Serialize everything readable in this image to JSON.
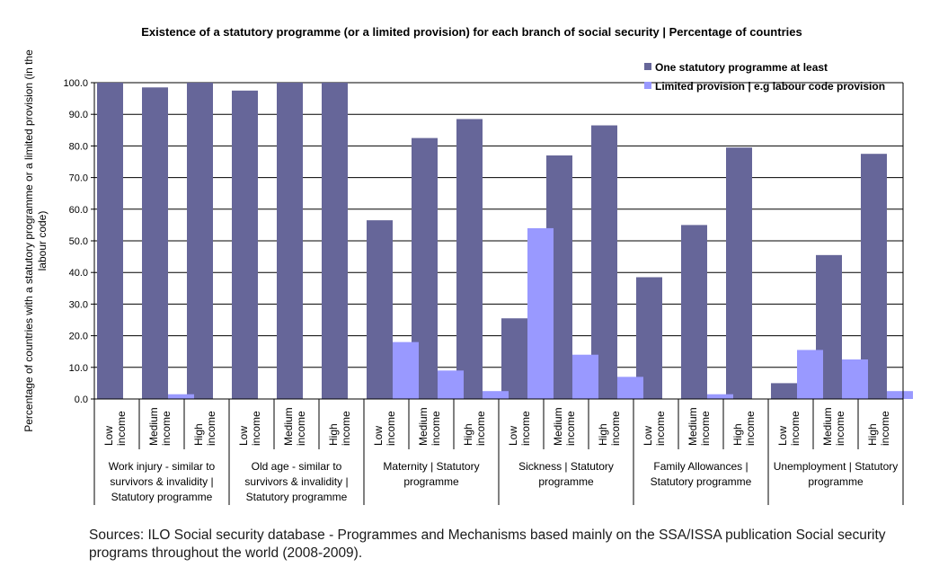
{
  "chart_data": {
    "type": "bar",
    "title": "Existence of a statutory programme (or a limited provision) for each branch of social security | Percentage of countries",
    "ylabel": "Percentage of countries with a statutory programme or a limited provision (in the labour code)",
    "ylabel_lines": [
      "Percentage of countries with a statutory programme or a limited provision (in the",
      "labour code)"
    ],
    "ylim": [
      0,
      100
    ],
    "yticks": [
      "0.0",
      "10.0",
      "20.0",
      "30.0",
      "40.0",
      "50.0",
      "60.0",
      "70.0",
      "80.0",
      "90.0",
      "100.0"
    ],
    "grid": true,
    "legend_position": "top-right",
    "groups": [
      {
        "label_lines": [
          "Work  injury - similar to",
          "survivors & invalidity |",
          "Statutory programme"
        ],
        "categories": [
          [
            "Low",
            "income"
          ],
          [
            "Medium",
            "income"
          ],
          [
            "High",
            "income"
          ]
        ]
      },
      {
        "label_lines": [
          "Old age - similar to",
          "survivors & invalidity |",
          "Statutory programme"
        ],
        "categories": [
          [
            "Low",
            "income"
          ],
          [
            "Medium",
            "income"
          ],
          [
            "High",
            "income"
          ]
        ]
      },
      {
        "label_lines": [
          "Maternity | Statutory",
          "programme"
        ],
        "categories": [
          [
            "Low",
            "income"
          ],
          [
            "Medium",
            "income"
          ],
          [
            "High",
            "income"
          ]
        ]
      },
      {
        "label_lines": [
          "Sickness | Statutory",
          "programme"
        ],
        "categories": [
          [
            "Low",
            "income"
          ],
          [
            "Medium",
            "income"
          ],
          [
            "High",
            "income"
          ]
        ]
      },
      {
        "label_lines": [
          "Family Allowances |",
          "Statutory programme"
        ],
        "categories": [
          [
            "Low",
            "income"
          ],
          [
            "Medium",
            "income"
          ],
          [
            "High",
            "income"
          ]
        ]
      },
      {
        "label_lines": [
          "Unemployment | Statutory",
          "programme"
        ],
        "categories": [
          [
            "Low",
            "income"
          ],
          [
            "Medium",
            "income"
          ],
          [
            "High",
            "income"
          ]
        ]
      }
    ],
    "series": [
      {
        "name": "One statutory programme at least",
        "color": "#666699",
        "values": [
          100,
          98.5,
          100,
          97.5,
          100,
          100,
          56.5,
          82.5,
          88.5,
          25.5,
          77,
          86.5,
          38.5,
          55,
          79.5,
          5,
          45.5,
          77.5
        ]
      },
      {
        "name": "Limited provision | e.g labour code provision",
        "color": "#9999ff",
        "values": [
          0,
          1.5,
          0,
          0,
          0,
          0,
          18,
          9,
          2.5,
          54,
          14,
          7,
          0,
          1.5,
          0,
          15.5,
          12.5,
          2.5
        ]
      }
    ]
  },
  "source": {
    "lines": [
      "Sources: ILO Social security database - Programmes and Mechanisms based mainly on the SSA/ISSA publication Social security",
      "programs throughout the world (2008-2009)."
    ]
  }
}
